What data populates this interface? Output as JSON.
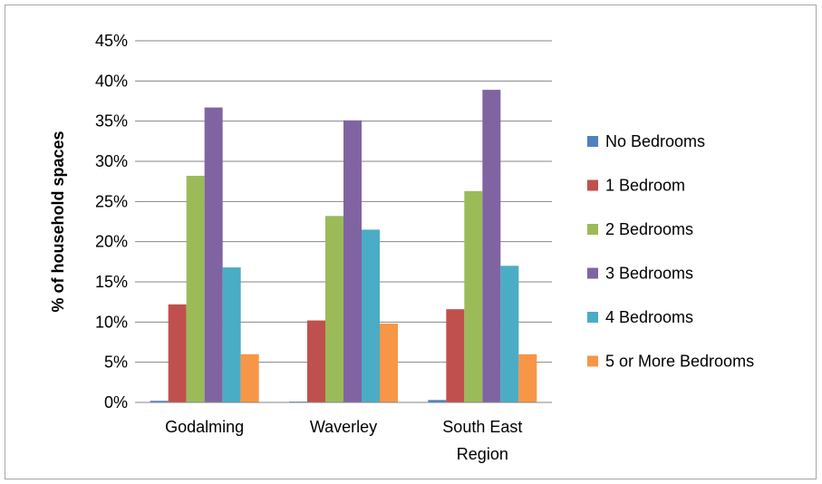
{
  "chart_data": {
    "type": "bar",
    "title": "",
    "xlabel": "",
    "ylabel": "% of household spaces",
    "ylim": [
      0,
      0.45
    ],
    "y_ticks": [
      "0%",
      "5%",
      "10%",
      "15%",
      "20%",
      "25%",
      "30%",
      "35%",
      "40%",
      "45%"
    ],
    "grid": true,
    "legend_position": "right",
    "categories": [
      [
        "Godalming"
      ],
      [
        "Waverley"
      ],
      [
        "South East",
        "Region"
      ]
    ],
    "series": [
      {
        "name": "No Bedrooms",
        "color": "#4f81bd",
        "values": [
          0.002,
          0.001,
          0.003
        ]
      },
      {
        "name": "1 Bedroom",
        "color": "#c0504d",
        "values": [
          0.122,
          0.102,
          0.116
        ]
      },
      {
        "name": "2 Bedrooms",
        "color": "#9bbb59",
        "values": [
          0.282,
          0.232,
          0.263
        ]
      },
      {
        "name": "3 Bedrooms",
        "color": "#8064a2",
        "values": [
          0.367,
          0.351,
          0.389
        ]
      },
      {
        "name": "4 Bedrooms",
        "color": "#4bacc6",
        "values": [
          0.168,
          0.215,
          0.17
        ]
      },
      {
        "name": "5 or More Bedrooms",
        "color": "#f79646",
        "values": [
          0.06,
          0.098,
          0.06
        ]
      }
    ]
  }
}
